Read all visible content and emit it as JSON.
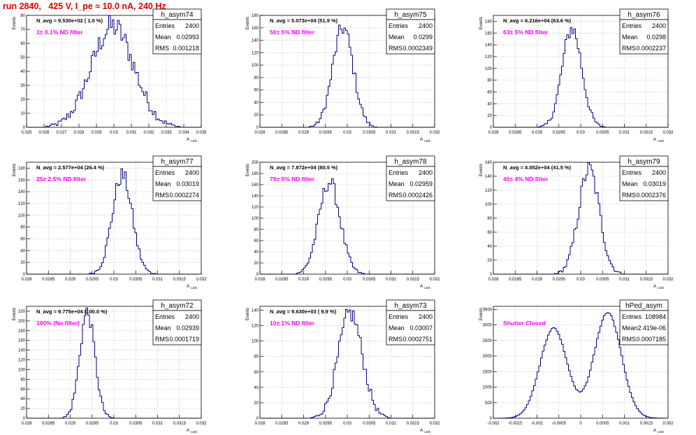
{
  "header": {
    "title": "run 2840,   425 V, I_pe ≈ 10.0 nA, 240 Hz"
  },
  "colors": {
    "title": "#e00000",
    "histogram_line": "#00007f",
    "filter_label": "#ff00ff",
    "grid": "#b0b0b0"
  },
  "chart_data": [
    {
      "type": "histogram",
      "name": "h_asym74",
      "xlabel": "A",
      "xlabel_sub": "LED",
      "ylabel": "Events",
      "navg": "N_avg = 9.530e+02 ( 1.0 %)",
      "label": "1± 0.1% ND filter",
      "stats": {
        "entries": "2400",
        "mean": "0.02993",
        "rms": "0.001218"
      },
      "xlim": [
        0.025,
        0.035
      ],
      "ylim": [
        0,
        80
      ],
      "grid": true,
      "xticks": [
        "0.025",
        "0.026",
        "0.027",
        "0.028",
        "0.029",
        "0.03",
        "0.031",
        "0.032",
        "0.033",
        "0.034",
        "0.035"
      ],
      "yticks": [
        "0",
        "10",
        "20",
        "30",
        "40",
        "50",
        "60",
        "70",
        "80"
      ],
      "peaks": [
        {
          "mu": 0.02993,
          "sigma": 0.00122,
          "height": 72
        }
      ]
    },
    {
      "type": "histogram",
      "name": "h_asym75",
      "xlabel": "A",
      "xlabel_sub": "LED",
      "ylabel": "Events",
      "navg": "N_avg = 5.073e+04 (51.9 %)",
      "label": "50± 5% ND filter",
      "stats": {
        "entries": "2400",
        "mean": "0.0299",
        "rms": "0.0002349"
      },
      "xlim": [
        0.028,
        0.032
      ],
      "ylim": [
        0,
        180
      ],
      "grid": true,
      "xticks": [
        "0.028",
        "0.0285",
        "0.029",
        "0.0295",
        "0.03",
        "0.0305",
        "0.031",
        "0.0315",
        "0.032"
      ],
      "yticks": [
        "0",
        "20",
        "40",
        "60",
        "80",
        "100",
        "120",
        "140",
        "160",
        "180"
      ],
      "peaks": [
        {
          "mu": 0.0299,
          "sigma": 0.000235,
          "height": 160
        }
      ]
    },
    {
      "type": "histogram",
      "name": "h_asym76",
      "xlabel": "A",
      "xlabel_sub": "LED",
      "ylabel": "Events",
      "navg": "N_avg = 6.216e+04 (63.6 %)",
      "label": "63± 5% ND filter",
      "stats": {
        "entries": "2400",
        "mean": "0.0298",
        "rms": "0.0002237"
      },
      "xlim": [
        0.028,
        0.032
      ],
      "ylim": [
        0,
        190
      ],
      "grid": true,
      "xticks": [
        "0.028",
        "0.0285",
        "0.029",
        "0.0295",
        "0.03",
        "0.0305",
        "0.031",
        "0.0315",
        "0.032"
      ],
      "yticks": [
        "0",
        "20",
        "40",
        "60",
        "80",
        "100",
        "120",
        "140",
        "160",
        "180"
      ],
      "peaks": [
        {
          "mu": 0.0298,
          "sigma": 0.000224,
          "height": 168
        }
      ]
    },
    {
      "type": "histogram",
      "name": "h_asym77",
      "xlabel": "A",
      "xlabel_sub": "LED",
      "ylabel": "Events",
      "navg": "N_avg = 2.577e+04 (26.4 %)",
      "label": "25± 2.5% ND filter",
      "stats": {
        "entries": "2400",
        "mean": "0.03019",
        "rms": "0.0002274"
      },
      "xlim": [
        0.028,
        0.032
      ],
      "ylim": [
        0,
        190
      ],
      "grid": true,
      "xticks": [
        "0.028",
        "0.0285",
        "0.029",
        "0.0295",
        "0.03",
        "0.0305",
        "0.031",
        "0.0315",
        "0.032"
      ],
      "yticks": [
        "0",
        "20",
        "40",
        "60",
        "80",
        "100",
        "120",
        "140",
        "160",
        "180"
      ],
      "peaks": [
        {
          "mu": 0.03019,
          "sigma": 0.000227,
          "height": 168
        }
      ]
    },
    {
      "type": "histogram",
      "name": "h_asym78",
      "xlabel": "A",
      "xlabel_sub": "LED",
      "ylabel": "Events",
      "navg": "N_avg = 7.872e+04 (80.5 %)",
      "label": "79± 5% ND filter",
      "stats": {
        "entries": "2400",
        "mean": "0.02959",
        "rms": "0.0002426"
      },
      "xlim": [
        0.028,
        0.032
      ],
      "ylim": [
        0,
        200
      ],
      "grid": true,
      "xticks": [
        "0.028",
        "0.0285",
        "0.029",
        "0.0295",
        "0.03",
        "0.0305",
        "0.031",
        "0.0315",
        "0.032"
      ],
      "yticks": [
        "0",
        "20",
        "40",
        "60",
        "80",
        "100",
        "120",
        "140",
        "160",
        "180",
        "200"
      ],
      "peaks": [
        {
          "mu": 0.02959,
          "sigma": 0.000243,
          "height": 165
        }
      ]
    },
    {
      "type": "histogram",
      "name": "h_asym79",
      "xlabel": "A",
      "xlabel_sub": "LED",
      "ylabel": "Events",
      "navg": "N_avg = 4.052e+04 (41.5 %)",
      "label": "40± 4% ND filter",
      "stats": {
        "entries": "2400",
        "mean": "0.03019",
        "rms": "0.0002376"
      },
      "xlim": [
        0.028,
        0.032
      ],
      "ylim": [
        0,
        160
      ],
      "grid": true,
      "xticks": [
        "0.028",
        "0.0285",
        "0.029",
        "0.0295",
        "0.03",
        "0.0305",
        "0.031",
        "0.0315",
        "0.032"
      ],
      "yticks": [
        "0",
        "20",
        "40",
        "60",
        "80",
        "100",
        "120",
        "140",
        "160"
      ],
      "peaks": [
        {
          "mu": 0.03019,
          "sigma": 0.000238,
          "height": 150
        }
      ]
    },
    {
      "type": "histogram",
      "name": "h_asym72",
      "xlabel": "A",
      "xlabel_sub": "LED",
      "ylabel": "Events",
      "navg": "N_avg = 9.775e+04 (100.0 %)",
      "label": "100% (No filter)",
      "stats": {
        "entries": "2400",
        "mean": "0.02939",
        "rms": "0.0001719"
      },
      "xlim": [
        0.028,
        0.032
      ],
      "ylim": [
        0,
        230
      ],
      "grid": true,
      "xticks": [
        "0.028",
        "0.0285",
        "0.029",
        "0.0295",
        "0.03",
        "0.0305",
        "0.031",
        "0.0315",
        "0.032"
      ],
      "yticks": [
        "0",
        "20",
        "40",
        "60",
        "80",
        "100",
        "120",
        "140",
        "160",
        "180",
        "200",
        "220"
      ],
      "peaks": [
        {
          "mu": 0.02939,
          "sigma": 0.000172,
          "height": 218
        }
      ]
    },
    {
      "type": "histogram",
      "name": "h_asym73",
      "xlabel": "A",
      "xlabel_sub": "LED",
      "ylabel": "Events",
      "navg": "N_avg = 9.630e+03 ( 9.9 %)",
      "label": "10± 1% ND filter",
      "stats": {
        "entries": "2400",
        "mean": "0.03007",
        "rms": "0.0002751"
      },
      "xlim": [
        0.028,
        0.032
      ],
      "ylim": [
        0,
        145
      ],
      "grid": true,
      "xticks": [
        "0.028",
        "0.0285",
        "0.029",
        "0.0295",
        "0.03",
        "0.0305",
        "0.031",
        "0.0315",
        "0.032"
      ],
      "yticks": [
        "0",
        "20",
        "40",
        "60",
        "80",
        "100",
        "120",
        "140"
      ],
      "peaks": [
        {
          "mu": 0.03007,
          "sigma": 0.000275,
          "height": 136
        }
      ]
    },
    {
      "type": "histogram",
      "name": "hPed_asym",
      "xlabel": "A",
      "xlabel_sub": "LED",
      "ylabel": "Events",
      "navg": "",
      "label": "Shutter Closed",
      "stats": {
        "entries": "108984",
        "mean": "2.419e-06",
        "rms": "0.0007185"
      },
      "xlim": [
        -0.002,
        0.002
      ],
      "ylim": [
        0,
        3600
      ],
      "grid": true,
      "xticks": [
        "-0.002",
        "-0.0015",
        "-0.001",
        "-0.0005",
        "0",
        "0.0005",
        "0.001",
        "0.0015",
        "0.002"
      ],
      "yticks": [
        "0",
        "500",
        "1000",
        "1500",
        "2000",
        "2500",
        "3000",
        "3500"
      ],
      "peaks": [
        {
          "mu": -0.00062,
          "sigma": 0.00031,
          "height": 2900
        },
        {
          "mu": 0.00062,
          "sigma": 0.00031,
          "height": 3400
        }
      ]
    }
  ]
}
